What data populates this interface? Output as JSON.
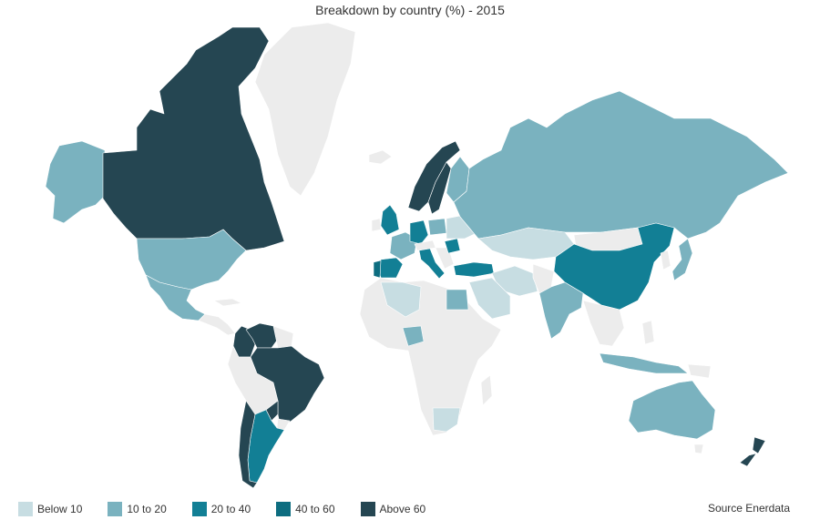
{
  "title": "Breakdown by country (%) - 2015",
  "source": "Source Enerdata",
  "legend": [
    {
      "label": "Below 10",
      "color": "#c7dde2"
    },
    {
      "label": "10 to 20",
      "color": "#7ab2bf"
    },
    {
      "label": "20 to 40",
      "color": "#127f95"
    },
    {
      "label": "40 to 60",
      "color": "#0d6d80"
    },
    {
      "label": "Above 60",
      "color": "#254652"
    }
  ],
  "no_data_color": "#ececec",
  "countries": [
    {
      "name": "Canada",
      "class": "Above 60"
    },
    {
      "name": "Alaska",
      "class": "10 to 20"
    },
    {
      "name": "United States",
      "class": "10 to 20"
    },
    {
      "name": "Mexico",
      "class": "10 to 20"
    },
    {
      "name": "Greenland",
      "class": "none"
    },
    {
      "name": "Venezuela",
      "class": "Above 60"
    },
    {
      "name": "Colombia",
      "class": "Above 60"
    },
    {
      "name": "Brazil",
      "class": "Above 60"
    },
    {
      "name": "Paraguay",
      "class": "Above 60"
    },
    {
      "name": "Peru",
      "class": "none"
    },
    {
      "name": "Argentina",
      "class": "20 to 40"
    },
    {
      "name": "Chile",
      "class": "Above 60"
    },
    {
      "name": "Norway",
      "class": "Above 60"
    },
    {
      "name": "Sweden",
      "class": "Above 60"
    },
    {
      "name": "Finland",
      "class": "10 to 20"
    },
    {
      "name": "United Kingdom",
      "class": "20 to 40"
    },
    {
      "name": "France",
      "class": "10 to 20"
    },
    {
      "name": "Spain",
      "class": "20 to 40"
    },
    {
      "name": "Portugal",
      "class": "40 to 60"
    },
    {
      "name": "Germany",
      "class": "20 to 40"
    },
    {
      "name": "Italy",
      "class": "20 to 40"
    },
    {
      "name": "Switzerland",
      "class": "Above 60"
    },
    {
      "name": "Austria",
      "class": "Above 60"
    },
    {
      "name": "Poland",
      "class": "10 to 20"
    },
    {
      "name": "Romania",
      "class": "20 to 40"
    },
    {
      "name": "Ukraine",
      "class": "Below 10"
    },
    {
      "name": "Turkey",
      "class": "20 to 40"
    },
    {
      "name": "Russia",
      "class": "10 to 20"
    },
    {
      "name": "Kazakhstan",
      "class": "Below 10"
    },
    {
      "name": "Iran",
      "class": "Below 10"
    },
    {
      "name": "Saudi Arabia",
      "class": "Below 10"
    },
    {
      "name": "Egypt",
      "class": "10 to 20"
    },
    {
      "name": "Algeria",
      "class": "Below 10"
    },
    {
      "name": "Nigeria",
      "class": "10 to 20"
    },
    {
      "name": "South Africa",
      "class": "Below 10"
    },
    {
      "name": "India",
      "class": "10 to 20"
    },
    {
      "name": "China",
      "class": "20 to 40"
    },
    {
      "name": "Mongolia",
      "class": "none"
    },
    {
      "name": "Japan",
      "class": "10 to 20"
    },
    {
      "name": "Indonesia",
      "class": "10 to 20"
    },
    {
      "name": "Australia",
      "class": "10 to 20"
    },
    {
      "name": "New Zealand",
      "class": "Above 60"
    }
  ]
}
